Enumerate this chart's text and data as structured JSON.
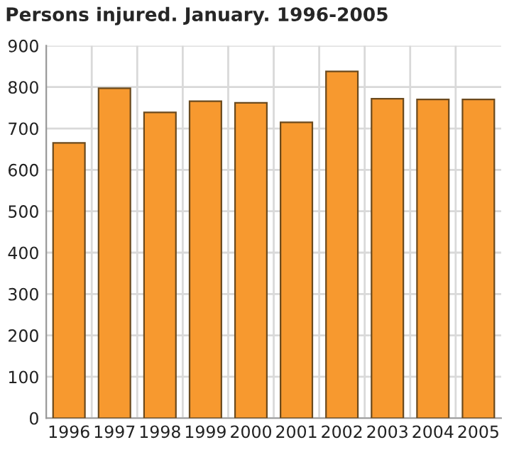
{
  "chart_data": {
    "type": "bar",
    "title": "Persons injured. January. 1996-2005",
    "categories": [
      "1996",
      "1997",
      "1998",
      "1999",
      "2000",
      "2001",
      "2002",
      "2003",
      "2004",
      "2005"
    ],
    "values": [
      665,
      797,
      739,
      766,
      762,
      715,
      838,
      772,
      770,
      770
    ],
    "color": "#f7992f",
    "ylim": [
      0,
      900
    ],
    "yticks": [
      0,
      100,
      200,
      300,
      400,
      500,
      600,
      700,
      800,
      900
    ],
    "grid": true
  }
}
